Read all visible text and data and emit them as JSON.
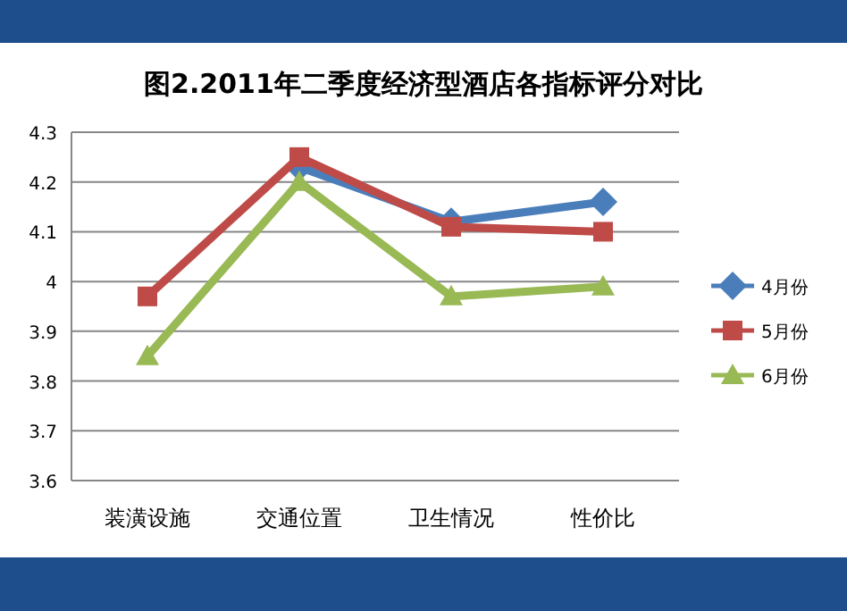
{
  "chart_data": {
    "type": "line",
    "title": "图2.2011年二季度经济型酒店各指标评分对比",
    "categories": [
      "装潢设施",
      "交通位置",
      "卫生情况",
      "性价比"
    ],
    "series": [
      {
        "name": "4月份",
        "color": "#4a7ebb",
        "marker": "diamond",
        "values": [
          null,
          4.23,
          4.12,
          4.16
        ]
      },
      {
        "name": "5月份",
        "color": "#be4b48",
        "marker": "square",
        "values": [
          3.97,
          4.25,
          4.11,
          4.1
        ]
      },
      {
        "name": "6月份",
        "color": "#98b954",
        "marker": "triangle",
        "values": [
          3.85,
          4.2,
          3.97,
          3.99
        ]
      }
    ],
    "ylim": [
      3.6,
      4.3
    ],
    "yticks": [
      3.6,
      3.7,
      3.8,
      3.9,
      4,
      4.1,
      4.2,
      4.3
    ],
    "grid": "y",
    "legend": "right"
  }
}
